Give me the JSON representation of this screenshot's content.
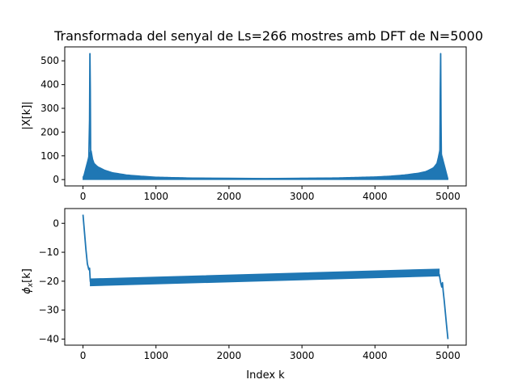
{
  "chart_data": [
    {
      "type": "line",
      "title": "Transformada del senyal de Ls=266 mostres amb DFT de N=5000",
      "xlabel": "",
      "ylabel": "|X[k]|",
      "xlim": [
        -250,
        5250
      ],
      "ylim": [
        -26.6,
        558.6
      ],
      "x_ticks": [
        0,
        1000,
        2000,
        3000,
        4000,
        5000
      ],
      "y_ticks": [
        0,
        100,
        200,
        300,
        400,
        500
      ],
      "grid": false,
      "line_color": "#1f77b4",
      "series": [
        {
          "x": [
            0,
            20,
            40,
            60,
            80,
            90,
            95,
            100,
            105,
            110,
            120,
            135,
            150,
            200,
            300,
            400,
            600,
            800,
            1000,
            1500,
            2000,
            2500,
            3000,
            3500,
            4000,
            4200,
            4400,
            4600,
            4700,
            4800,
            4850,
            4880,
            4890,
            4895,
            4900,
            4905,
            4910,
            4920,
            4940,
            4960,
            4980,
            5000
          ],
          "y": [
            8,
            20,
            35,
            60,
            95,
            250,
            530,
            380,
            90,
            120,
            70,
            55,
            45,
            35,
            22,
            18,
            12,
            9,
            8,
            6,
            5,
            4,
            5,
            6,
            8,
            10,
            14,
            22,
            30,
            45,
            55,
            70,
            120,
            380,
            530,
            250,
            95,
            60,
            35,
            20,
            8,
            3
          ]
        }
      ],
      "envelope_upper": {
        "x": [
          0,
          80,
          110,
          130,
          150,
          200,
          300,
          400,
          600,
          800,
          1000,
          1500,
          2000,
          2500,
          3000,
          3500,
          4000,
          4200,
          4400,
          4600,
          4700,
          4800,
          4850,
          4870,
          4890,
          4920,
          5000
        ],
        "y": [
          5,
          100,
          130,
          90,
          70,
          55,
          40,
          30,
          20,
          15,
          11,
          7,
          5,
          5,
          6,
          8,
          12,
          15,
          20,
          28,
          35,
          50,
          70,
          100,
          130,
          100,
          5
        ]
      },
      "envelope_lower": {
        "x": [
          0,
          1000,
          2000,
          3000,
          4000,
          5000
        ],
        "y": [
          0,
          0,
          0,
          0,
          0,
          0
        ]
      }
    },
    {
      "type": "line",
      "title": "",
      "xlabel": "Index k",
      "ylabel": "ϕx[k]",
      "xlim": [
        -250,
        5250
      ],
      "ylim": [
        -42.1,
        5.1
      ],
      "x_ticks": [
        0,
        1000,
        2000,
        3000,
        4000,
        5000
      ],
      "y_ticks": [
        0,
        -10,
        -20,
        -30,
        -40
      ],
      "grid": false,
      "line_color": "#1f77b4",
      "band": {
        "x": [
          100,
          4880
        ],
        "upper": [
          -19.2,
          -15.8
        ],
        "lower": [
          -21.6,
          -18.2
        ]
      },
      "series": [
        {
          "x": [
            0,
            20,
            40,
            60,
            80,
            90,
            100,
            110,
            130
          ],
          "y": [
            3,
            -3,
            -9,
            -14,
            -16,
            -15.5,
            -20,
            -21,
            -19.5
          ]
        },
        {
          "x": [
            4880,
            4900,
            4915,
            4925,
            4935,
            4950,
            4965,
            4980,
            5000
          ],
          "y": [
            -17.5,
            -20.5,
            -22,
            -20.5,
            -23.5,
            -27,
            -31,
            -35,
            -40
          ]
        }
      ]
    }
  ]
}
